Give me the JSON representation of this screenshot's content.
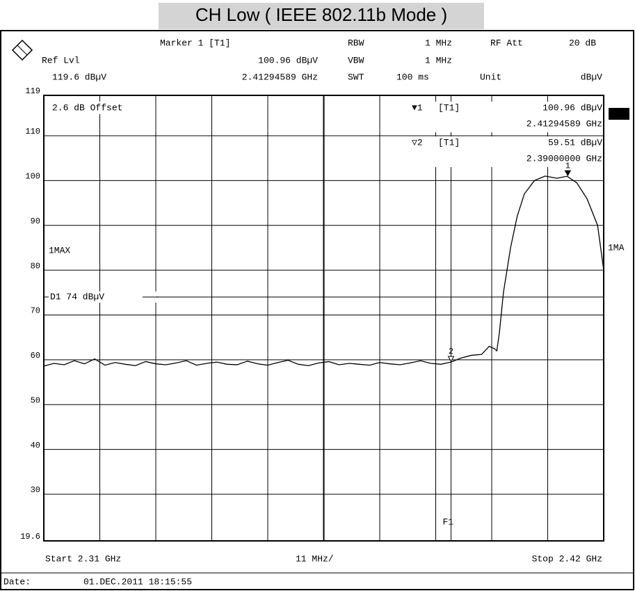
{
  "chart_data": {
    "type": "line",
    "title": "CH Low ( IEEE 802.11b Mode )",
    "header": {
      "marker": "Marker 1 [T1]",
      "rbw_label": "RBW",
      "rbw": "1 MHz",
      "rf_att_label": "RF Att",
      "rf_att": "20 dB",
      "ref_lvl_label": "Ref Lvl",
      "ref_lvl": "119.6 dBµV",
      "vbw_label": "VBW",
      "vbw": "1 MHz",
      "swt_label": "SWT",
      "swt": "100 ms",
      "unit_label": "Unit",
      "unit": "dBµV"
    },
    "annotations": {
      "offset": "2.6 dB Offset",
      "trace_left": "1MAX",
      "trace_right": "1MA"
    },
    "footer": {
      "start": "Start 2.31 GHz",
      "span": "11 MHz/",
      "stop": "Stop 2.42 GHz",
      "date_label": "Date:",
      "date": "01.DEC.2011 18:15:55"
    },
    "xlim": [
      2.31,
      2.42
    ],
    "xticks": [
      2.31,
      2.321,
      2.332,
      2.343,
      2.354,
      2.365,
      2.376,
      2.387,
      2.398,
      2.409,
      2.42
    ],
    "ylim": [
      19.6,
      119
    ],
    "yticks": [
      119,
      110,
      100,
      90,
      80,
      70,
      60,
      50,
      40,
      30,
      19.6
    ],
    "grid": true,
    "display_line": {
      "value": 74,
      "label": "D1 74 dBµV"
    },
    "frequency_line": {
      "value": 2.39,
      "label": "F1"
    },
    "markers": [
      {
        "number": 1,
        "symbol": "▼1",
        "trace": "[T1]",
        "x": 2.41294589,
        "y": 100.96,
        "y_label": "100.96 dBµV",
        "x_label": "2.41294589 GHz"
      },
      {
        "number": 2,
        "symbol": "▽2",
        "trace": "[T1]",
        "x": 2.39,
        "y": 59.51,
        "y_label": "59.51 dBµV",
        "x_label": "2.39000000 GHz"
      }
    ],
    "series": [
      {
        "name": "1MAX",
        "color": "#000000",
        "x": [
          2.31,
          2.312,
          2.314,
          2.316,
          2.318,
          2.32,
          2.322,
          2.324,
          2.326,
          2.328,
          2.33,
          2.332,
          2.334,
          2.336,
          2.338,
          2.34,
          2.342,
          2.344,
          2.346,
          2.348,
          2.35,
          2.352,
          2.354,
          2.356,
          2.358,
          2.36,
          2.362,
          2.364,
          2.366,
          2.368,
          2.37,
          2.372,
          2.374,
          2.376,
          2.378,
          2.38,
          2.382,
          2.384,
          2.386,
          2.388,
          2.39,
          2.392,
          2.394,
          2.396,
          2.3975,
          2.3985,
          2.399,
          2.3995,
          2.4003,
          2.4017,
          2.403,
          2.4044,
          2.4064,
          2.4085,
          2.4108,
          2.4128,
          2.4147,
          2.4167,
          2.4188,
          2.42
        ],
        "values": [
          58.6,
          59.2,
          58.9,
          59.8,
          59.1,
          60.2,
          58.8,
          59.4,
          59.0,
          58.7,
          59.6,
          59.1,
          58.9,
          59.3,
          59.8,
          58.8,
          59.2,
          59.5,
          59.0,
          58.9,
          59.7,
          59.1,
          58.8,
          59.4,
          59.9,
          59.0,
          58.7,
          59.3,
          59.6,
          58.9,
          59.2,
          59.0,
          58.8,
          59.4,
          59.1,
          58.9,
          59.3,
          59.8,
          59.2,
          59.0,
          59.5,
          60.4,
          61.0,
          61.2,
          63,
          62.5,
          62,
          66,
          75,
          85,
          92,
          97,
          100,
          101,
          100.5,
          100.96,
          99.5,
          96,
          90,
          80
        ]
      }
    ]
  }
}
